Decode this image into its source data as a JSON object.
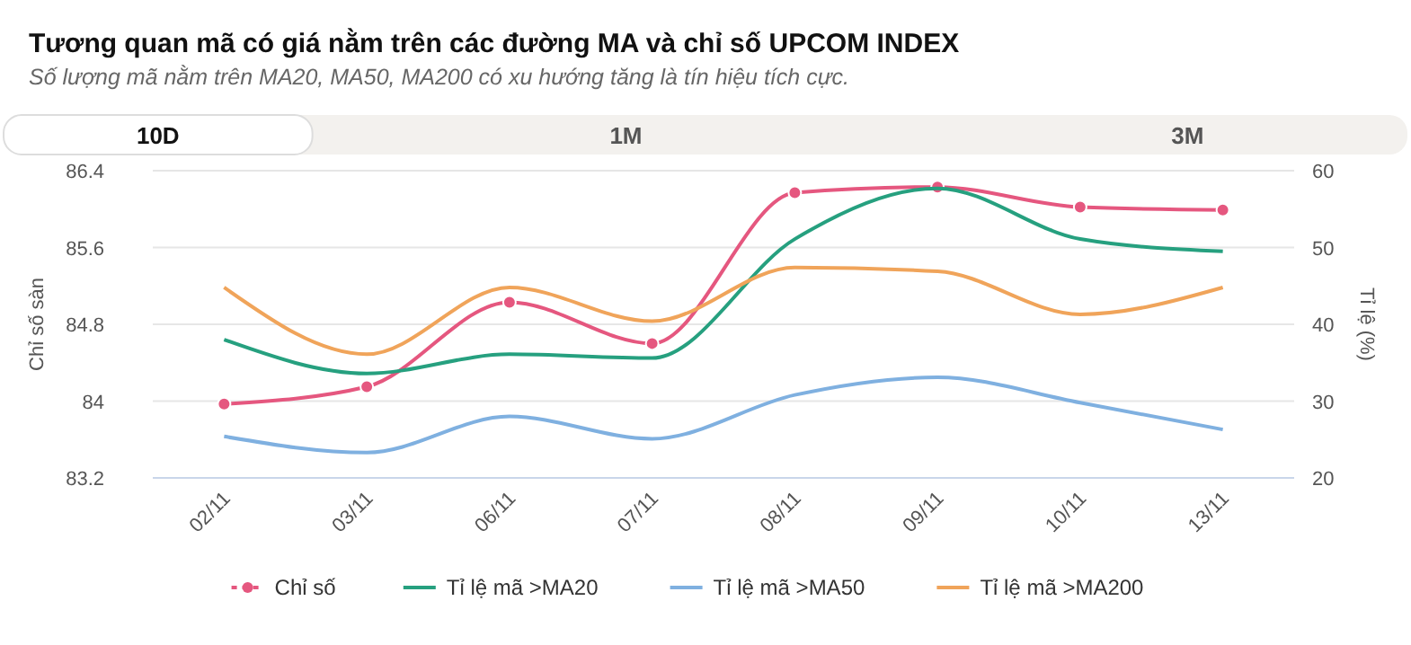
{
  "chart_data": {
    "type": "line",
    "title": "Tương quan mã có giá nằm trên các đường MA và chỉ số UPCOM INDEX",
    "subtitle": "Số lượng mã nằm trên MA20, MA50, MA200 có xu hướng tăng là tín hiệu tích cực.",
    "annotations": [
      "10D",
      "1M",
      "3M"
    ],
    "ylabel": "Chỉ số sàn",
    "y2label": "Tỉ lệ (%)",
    "categories": [
      "02/11",
      "03/11",
      "06/11",
      "07/11",
      "08/11",
      "09/11",
      "10/11",
      "13/11"
    ],
    "series": [
      {
        "name": "Chỉ số",
        "color": "#e5577f",
        "marker": "circle",
        "values": [
          83.97,
          84.15,
          85.03,
          84.6,
          86.17,
          86.23,
          86.02,
          85.99
        ]
      },
      {
        "name": "Tỉ lệ mã >MA20",
        "color": "#26a07f",
        "axis": "y2",
        "values": [
          38.0,
          33.6,
          36.1,
          35.6,
          51.1,
          57.7,
          51.1,
          49.5
        ]
      },
      {
        "name": "Tỉ lệ mã >MA50",
        "color": "#7fb0e0",
        "axis": "y2",
        "values": [
          25.4,
          23.3,
          28.0,
          25.1,
          30.8,
          33.1,
          29.8,
          26.3
        ]
      },
      {
        "name": "Tỉ lệ mã >MA200",
        "color": "#f0a45a",
        "axis": "y2",
        "values": [
          44.8,
          36.1,
          44.8,
          40.4,
          47.4,
          46.9,
          41.3,
          44.8
        ]
      }
    ],
    "ylim": [
      83.2,
      86.4
    ],
    "yticks": [
      83.2,
      84,
      84.8,
      85.6,
      86.4
    ],
    "y2lim": [
      20,
      60
    ],
    "y2ticks": [
      20,
      30,
      40,
      50,
      60
    ],
    "grid": "y",
    "legend": "bottom",
    "line_style": "solid"
  }
}
